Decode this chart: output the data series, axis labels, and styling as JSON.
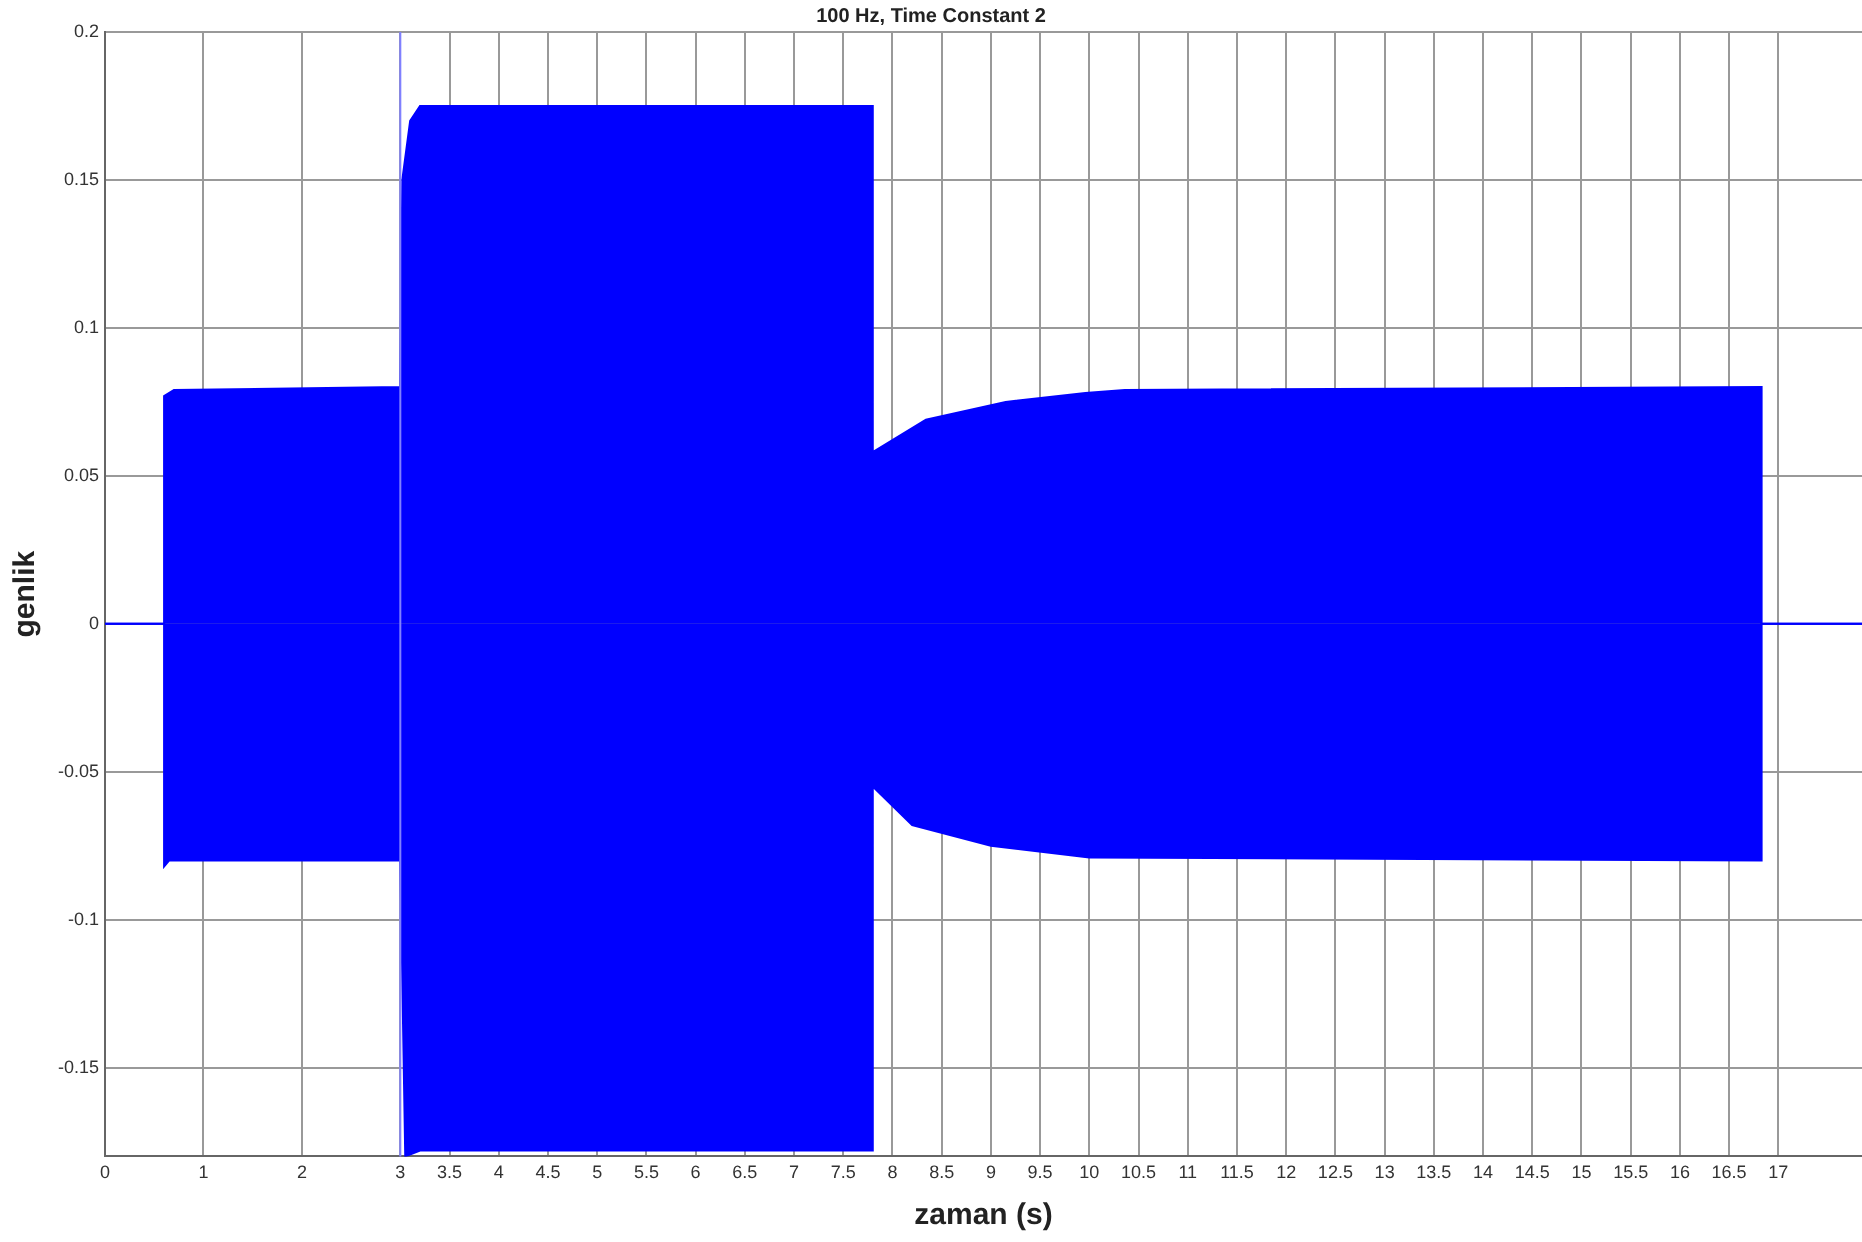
{
  "chart_data": {
    "type": "area",
    "title": "100 Hz, Time Constant 2",
    "xlabel": "zaman (s)",
    "ylabel": "genlik",
    "series": [
      {
        "color": "#0000ff",
        "x": [
          0,
          0.6,
          0.6,
          0.7,
          3.0,
          3.02,
          3.1,
          3.2,
          7.8,
          7.8,
          8.34,
          9.15,
          9.96,
          10.36,
          16.83,
          16.83,
          17.85
        ],
        "values": [
          0,
          0,
          0.077,
          0.079,
          0.08,
          0.15,
          0.17,
          0.175,
          0.175,
          0.058,
          0.069,
          0.075,
          0.078,
          0.079,
          0.08,
          0,
          0
        ]
      },
      {
        "color": "#0000ff",
        "x": [
          0,
          0.6,
          0.6,
          0.65,
          3.0,
          3.05,
          3.2,
          7.8,
          7.8,
          8.2,
          9.0,
          10.0,
          16.83,
          16.83,
          17.85
        ],
        "values": [
          0,
          0,
          -0.082,
          -0.08,
          -0.08,
          -0.18,
          -0.178,
          -0.178,
          -0.055,
          -0.068,
          -0.075,
          -0.079,
          -0.08,
          0,
          0
        ]
      }
    ],
    "xlim": [
      0,
      17.85
    ],
    "xticks": [
      0,
      1,
      2,
      3,
      3.5,
      4,
      4.5,
      5,
      5.5,
      6,
      6.5,
      7,
      7.5,
      8,
      8.5,
      9,
      9.5,
      10,
      10.5,
      11,
      11.5,
      12,
      12.5,
      13,
      13.5,
      14,
      14.5,
      15,
      15.5,
      16,
      16.5,
      17
    ],
    "ylim": [
      -0.18,
      0.2
    ],
    "yticks": [
      -0.15,
      -0.1,
      -0.05,
      0,
      0.05,
      0.1,
      0.15,
      0.2
    ],
    "ref_lines": [
      {
        "axis": "x",
        "value": 3,
        "color": "#8080ff"
      }
    ],
    "grid": true,
    "legend": false
  }
}
